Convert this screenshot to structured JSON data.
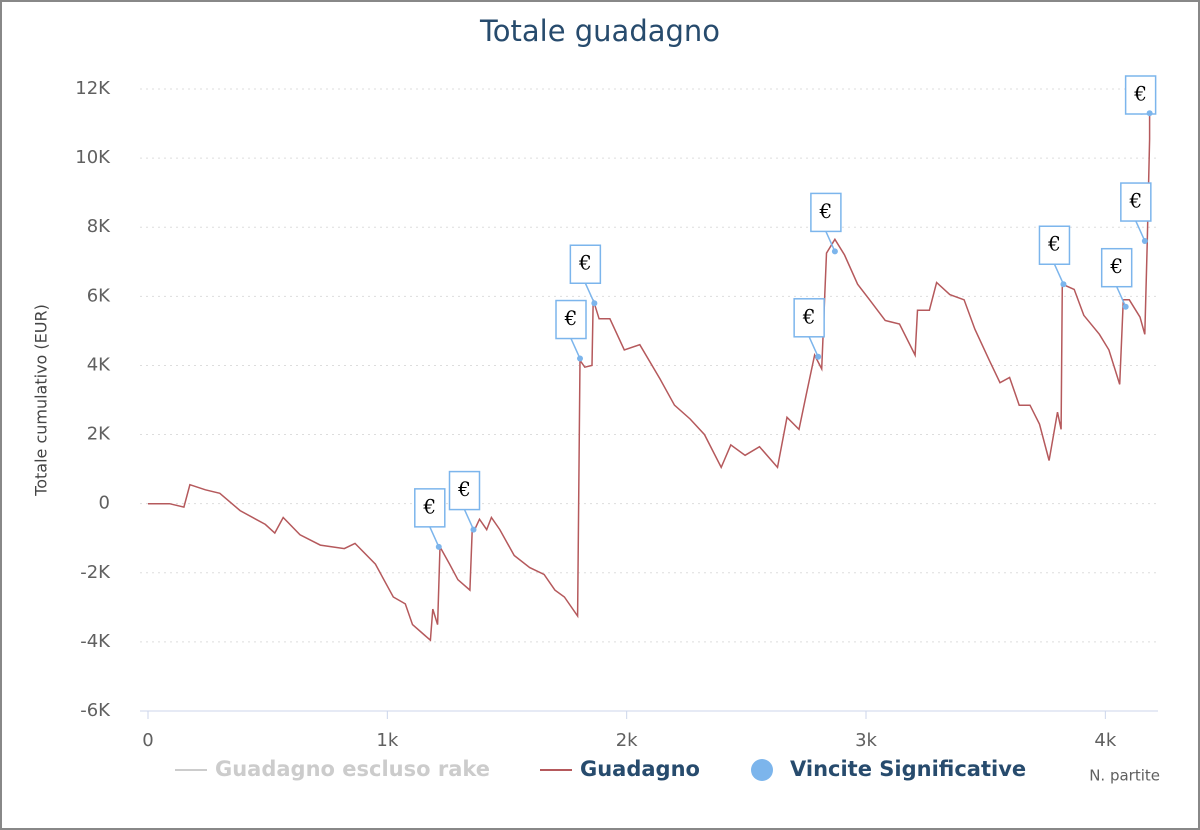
{
  "chart_data": {
    "type": "line",
    "title": "Totale guadagno",
    "x_label": "N. partite",
    "y_label": "Totale cumulativo (EUR)",
    "xlim": [
      0,
      4220
    ],
    "ylim": [
      -6000,
      12000
    ],
    "xticks": [
      0,
      {
        "value": 1000,
        "label": "1k"
      },
      {
        "value": 2000,
        "label": "2k"
      },
      {
        "value": 3000,
        "label": "3k"
      },
      {
        "value": 4000,
        "label": "4k"
      }
    ],
    "yticks": [
      {
        "value": -6000,
        "label": "-6K"
      },
      {
        "value": -4000,
        "label": "-4K"
      },
      {
        "value": -2000,
        "label": "-2K"
      },
      0,
      {
        "value": 2000,
        "label": "2K"
      },
      {
        "value": 4000,
        "label": "4K"
      },
      {
        "value": 6000,
        "label": "6K"
      },
      {
        "value": 8000,
        "label": "8K"
      },
      {
        "value": 10000,
        "label": "10K"
      },
      {
        "value": 12000,
        "label": "12K"
      }
    ],
    "grid": true,
    "series": [
      {
        "name": "Guadagno escluso rake",
        "color": "#cccccc",
        "visible": false
      },
      {
        "name": "Guadagno",
        "color": "#b5595c",
        "x": [
          0,
          90,
          150,
          175,
          240,
          300,
          385,
          490,
          530,
          565,
          635,
          720,
          820,
          865,
          950,
          1025,
          1075,
          1105,
          1155,
          1180,
          1190,
          1210,
          1220,
          1260,
          1295,
          1345,
          1355,
          1365,
          1385,
          1415,
          1435,
          1470,
          1530,
          1595,
          1655,
          1700,
          1740,
          1795,
          1805,
          1825,
          1855,
          1860,
          1885,
          1930,
          1990,
          2055,
          2140,
          2200,
          2265,
          2325,
          2395,
          2435,
          2495,
          2555,
          2630,
          2670,
          2720,
          2750,
          2785,
          2815,
          2835,
          2870,
          2910,
          2965,
          3015,
          3080,
          3140,
          3205,
          3215,
          3265,
          3295,
          3350,
          3410,
          3455,
          3515,
          3560,
          3600,
          3640,
          3685,
          3725,
          3765,
          3800,
          3815,
          3820,
          3870,
          3910,
          3975,
          4015,
          4060,
          4075,
          4100,
          4145,
          4165,
          4175,
          4185,
          4185
        ],
        "values": [
          0,
          0,
          -100,
          550,
          400,
          300,
          -200,
          -600,
          -850,
          -400,
          -900,
          -1200,
          -1300,
          -1150,
          -1750,
          -2700,
          -2900,
          -3500,
          -3800,
          -3950,
          -3050,
          -3500,
          -1250,
          -1750,
          -2200,
          -2500,
          -700,
          -750,
          -450,
          -750,
          -400,
          -750,
          -1500,
          -1850,
          -2050,
          -2500,
          -2700,
          -3250,
          4150,
          3950,
          4000,
          5900,
          5350,
          5350,
          4450,
          4600,
          3600,
          2850,
          2450,
          2000,
          1050,
          1700,
          1400,
          1650,
          1050,
          2500,
          2150,
          3150,
          4300,
          3900,
          7250,
          7650,
          7200,
          6350,
          5900,
          5300,
          5200,
          4300,
          5600,
          5600,
          6400,
          6050,
          5900,
          5050,
          4150,
          3500,
          3650,
          2850,
          2850,
          2300,
          1250,
          2650,
          2150,
          6350,
          6200,
          5450,
          4900,
          4450,
          3450,
          5900,
          5900,
          5400,
          4900,
          7500,
          10550,
          11350
        ]
      },
      {
        "name": "Vincite Significative",
        "color": "#7cb5ec",
        "flag_label": "€",
        "x": [
          1215,
          1360,
          1805,
          1865,
          2800,
          2870,
          3825,
          4085,
          4165,
          4185
        ],
        "values": [
          -1250,
          -750,
          4200,
          5800,
          4250,
          7300,
          6350,
          5700,
          7600,
          11300
        ]
      }
    ]
  }
}
